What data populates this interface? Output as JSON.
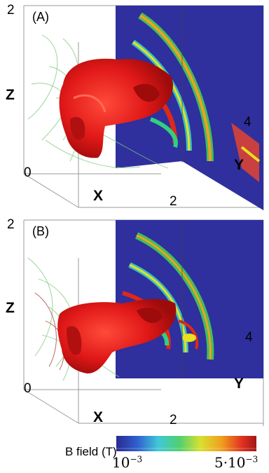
{
  "panels": [
    {
      "id": "(A)",
      "z_label": "Z",
      "x_label": "X",
      "y_label": "Y",
      "z_max": "2",
      "origin": "0",
      "x_max": "2",
      "y_max": "4"
    },
    {
      "id": "(B)",
      "z_label": "Z",
      "x_label": "X",
      "y_label": "Y",
      "z_max": "2",
      "origin": "0",
      "x_max": "2",
      "y_max": "4"
    }
  ],
  "colorbar": {
    "title": "B field (T)",
    "min_label": "10",
    "min_exp": "−3",
    "max_label": "5·10",
    "max_exp": "−3"
  },
  "colors": {
    "slice_bg": "#2f2f9e",
    "isosurface": "#e0181c",
    "field_lines": "#7fc97f"
  }
}
